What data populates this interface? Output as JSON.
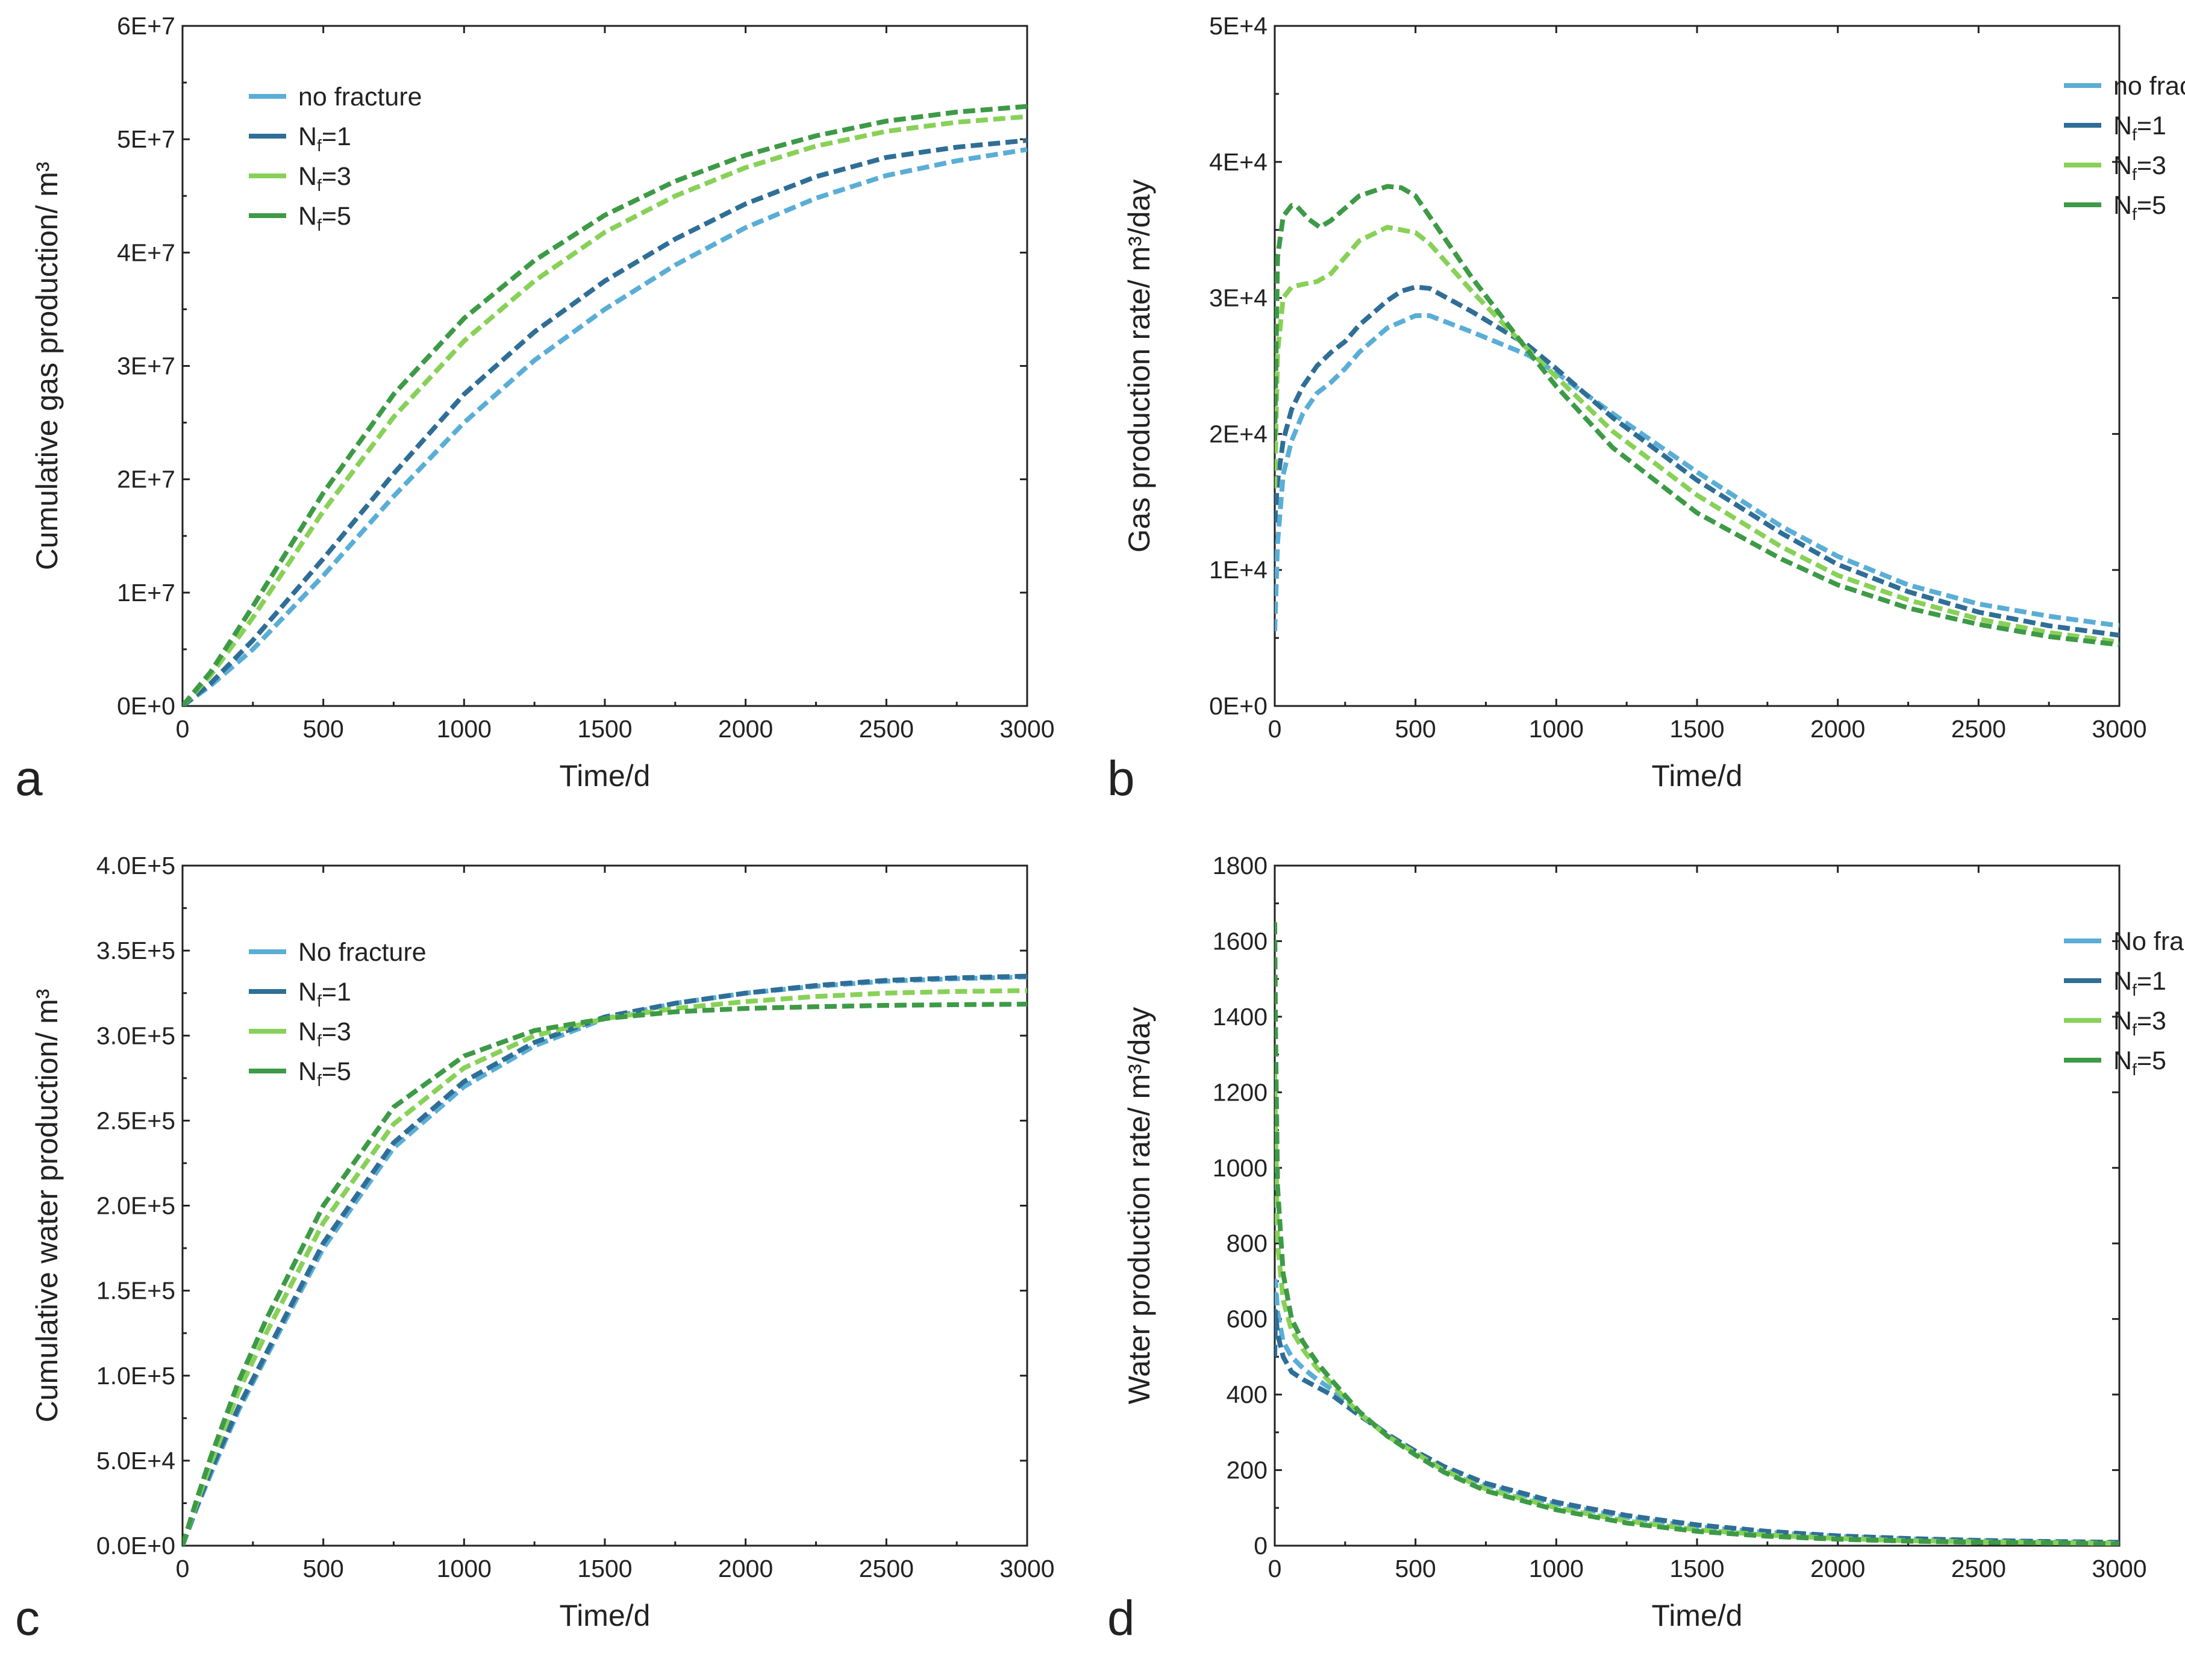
{
  "colors": {
    "no_fracture": "#5aaed6",
    "nf1": "#2f6e96",
    "nf3": "#88d158",
    "nf5": "#3d9a46"
  },
  "chart_data": [
    {
      "id": "a",
      "type": "line",
      "panel_label": "a",
      "xlabel": "Time/d",
      "ylabel": "Cumulative gas production/ m³",
      "xlim": [
        0,
        3000
      ],
      "ylim": [
        0,
        60000000
      ],
      "xticks": [
        "0",
        "500",
        "1000",
        "1500",
        "2000",
        "2500",
        "3000"
      ],
      "yticks": [
        "0E+0",
        "1E+7",
        "2E+7",
        "3E+7",
        "4E+7",
        "5E+7",
        "6E+7"
      ],
      "legend_position": "top-left",
      "series": [
        {
          "name": "no fracture",
          "sub": "",
          "tail": "",
          "color": "#5aaed6",
          "x": [
            0,
            100,
            250,
            500,
            750,
            1000,
            1250,
            1500,
            1750,
            2000,
            2250,
            2500,
            2750,
            3000
          ],
          "y": [
            0,
            1800000,
            5000000,
            11500000,
            18500000,
            25000000,
            30500000,
            35000000,
            38900000,
            42200000,
            44800000,
            46800000,
            48100000,
            49100000
          ]
        },
        {
          "name": "N",
          "sub": "f",
          "tail": "=1",
          "color": "#2f6e96",
          "x": [
            0,
            100,
            250,
            500,
            750,
            1000,
            1250,
            1500,
            1750,
            2000,
            2250,
            2500,
            2750,
            3000
          ],
          "y": [
            0,
            2000000,
            5800000,
            13000000,
            20500000,
            27500000,
            33000000,
            37500000,
            41200000,
            44300000,
            46700000,
            48400000,
            49300000,
            49900000
          ]
        },
        {
          "name": "N",
          "sub": "f",
          "tail": "=3",
          "color": "#88d158",
          "x": [
            0,
            100,
            250,
            500,
            750,
            1000,
            1250,
            1500,
            1750,
            2000,
            2250,
            2500,
            2750,
            3000
          ],
          "y": [
            0,
            2700000,
            7800000,
            17200000,
            25500000,
            32200000,
            37500000,
            41800000,
            45000000,
            47500000,
            49400000,
            50700000,
            51500000,
            52000000
          ]
        },
        {
          "name": "N",
          "sub": "f",
          "tail": "=5",
          "color": "#3d9a46",
          "x": [
            0,
            100,
            250,
            500,
            750,
            1000,
            1250,
            1500,
            1750,
            2000,
            2250,
            2500,
            2750,
            3000
          ],
          "y": [
            0,
            3000000,
            8800000,
            18800000,
            27500000,
            34200000,
            39300000,
            43300000,
            46300000,
            48600000,
            50300000,
            51600000,
            52400000,
            52900000
          ]
        }
      ]
    },
    {
      "id": "b",
      "type": "line",
      "panel_label": "b",
      "xlabel": "Time/d",
      "ylabel": "Gas production rate/ m³/day",
      "xlim": [
        0,
        3000
      ],
      "ylim": [
        0,
        50000
      ],
      "xticks": [
        "0",
        "500",
        "1000",
        "1500",
        "2000",
        "2500",
        "3000"
      ],
      "yticks": [
        "0E+0",
        "1E+4",
        "2E+4",
        "3E+4",
        "4E+4",
        "5E+4"
      ],
      "legend_position": "top-right",
      "series": [
        {
          "name": "no fracture",
          "sub": "",
          "tail": "",
          "color": "#5aaed6",
          "x": [
            0,
            10,
            30,
            60,
            100,
            150,
            200,
            250,
            300,
            400,
            500,
            550,
            700,
            900,
            1000,
            1200,
            1500,
            1800,
            2000,
            2250,
            2500,
            2750,
            3000
          ],
          "y": [
            5500,
            12000,
            17000,
            19500,
            21500,
            23000,
            23800,
            24800,
            26000,
            27800,
            28700,
            28700,
            27500,
            25800,
            24500,
            21500,
            17200,
            13200,
            11000,
            8900,
            7500,
            6600,
            5900
          ]
        },
        {
          "name": "N",
          "sub": "f",
          "tail": "=1",
          "color": "#2f6e96",
          "x": [
            0,
            10,
            30,
            60,
            100,
            150,
            200,
            250,
            300,
            400,
            450,
            500,
            550,
            700,
            900,
            1000,
            1200,
            1500,
            1800,
            2000,
            2250,
            2500,
            2750,
            3000
          ],
          "y": [
            13500,
            16500,
            19500,
            21800,
            23500,
            25000,
            26000,
            26800,
            28000,
            29800,
            30500,
            30800,
            30700,
            29000,
            26500,
            24800,
            21200,
            16600,
            12700,
            10400,
            8400,
            6900,
            5900,
            5200
          ]
        },
        {
          "name": "N",
          "sub": "f",
          "tail": "=3",
          "color": "#88d158",
          "x": [
            0,
            10,
            30,
            60,
            100,
            150,
            200,
            250,
            300,
            400,
            500,
            550,
            700,
            900,
            1000,
            1200,
            1500,
            1800,
            2000,
            2250,
            2500,
            2750,
            3000
          ],
          "y": [
            16000,
            26000,
            30000,
            30800,
            31000,
            31200,
            31800,
            33000,
            34200,
            35200,
            34800,
            34000,
            30500,
            26200,
            24200,
            20200,
            15500,
            11700,
            9600,
            7800,
            6400,
            5400,
            4700
          ]
        },
        {
          "name": "N",
          "sub": "f",
          "tail": "=5",
          "color": "#3d9a46",
          "x": [
            0,
            10,
            30,
            60,
            80,
            120,
            160,
            200,
            300,
            400,
            450,
            500,
            550,
            700,
            900,
            1000,
            1200,
            1500,
            1800,
            2000,
            2250,
            2500,
            2750,
            3000
          ],
          "y": [
            19500,
            33000,
            36000,
            36800,
            36700,
            35800,
            35200,
            35700,
            37500,
            38200,
            38100,
            37500,
            36000,
            31500,
            26100,
            23500,
            19000,
            14200,
            10800,
            8900,
            7200,
            6000,
            5100,
            4500
          ]
        }
      ]
    },
    {
      "id": "c",
      "type": "line",
      "panel_label": "c",
      "xlabel": "Time/d",
      "ylabel": "Cumulative water production/ m³",
      "xlim": [
        0,
        3000
      ],
      "ylim": [
        0,
        400000
      ],
      "xticks": [
        "0",
        "500",
        "1000",
        "1500",
        "2000",
        "2500",
        "3000"
      ],
      "yticks": [
        "0.0E+0",
        "5.0E+4",
        "1.0E+5",
        "1.5E+5",
        "2.0E+5",
        "2.5E+5",
        "3.0E+5",
        "3.5E+5",
        "4.0E+5"
      ],
      "legend_position": "top-left",
      "series": [
        {
          "name": "No fracture",
          "sub": "",
          "tail": "",
          "color": "#5aaed6",
          "x": [
            0,
            50,
            100,
            200,
            300,
            500,
            750,
            1000,
            1250,
            1500,
            1750,
            2000,
            2250,
            2500,
            2750,
            3000
          ],
          "y": [
            0,
            22000,
            42000,
            80000,
            112000,
            175000,
            234000,
            270000,
            294000,
            310000,
            319000,
            325000,
            329000,
            332000,
            333500,
            334500
          ]
        },
        {
          "name": "N",
          "sub": "f",
          "tail": "=1",
          "color": "#2f6e96",
          "x": [
            0,
            50,
            100,
            200,
            300,
            500,
            750,
            1000,
            1250,
            1500,
            1750,
            2000,
            2250,
            2500,
            2750,
            3000
          ],
          "y": [
            0,
            23000,
            44000,
            82000,
            114000,
            178000,
            237000,
            273000,
            296000,
            311000,
            319000,
            325000,
            329500,
            332500,
            334000,
            335000
          ]
        },
        {
          "name": "N",
          "sub": "f",
          "tail": "=3",
          "color": "#88d158",
          "x": [
            0,
            50,
            100,
            200,
            300,
            500,
            750,
            1000,
            1250,
            1500,
            1750,
            2000,
            2250,
            2500,
            2750,
            3000
          ],
          "y": [
            0,
            25000,
            48000,
            91000,
            126000,
            190000,
            248000,
            281000,
            300000,
            310000,
            316000,
            320000,
            323000,
            325000,
            326000,
            326500
          ]
        },
        {
          "name": "N",
          "sub": "f",
          "tail": "=5",
          "color": "#3d9a46",
          "x": [
            0,
            50,
            100,
            200,
            300,
            500,
            750,
            1000,
            1250,
            1500,
            1750,
            2000,
            2250,
            2500,
            2750,
            3000
          ],
          "y": [
            0,
            27000,
            52000,
            97000,
            134000,
            200000,
            258000,
            288000,
            303000,
            310000,
            314000,
            316000,
            317000,
            317800,
            318200,
            318500
          ]
        }
      ]
    },
    {
      "id": "d",
      "type": "line",
      "panel_label": "d",
      "xlabel": "Time/d",
      "ylabel": "Water production rate/ m³/day",
      "xlim": [
        0,
        3000
      ],
      "ylim": [
        0,
        1800
      ],
      "xticks": [
        "0",
        "500",
        "1000",
        "1500",
        "2000",
        "2500",
        "3000"
      ],
      "yticks": [
        "0",
        "200",
        "400",
        "600",
        "800",
        "1000",
        "1200",
        "1400",
        "1600",
        "1800"
      ],
      "legend_position": "top-right",
      "series": [
        {
          "name": "No fracture",
          "sub": "",
          "tail": "",
          "color": "#5aaed6",
          "x": [
            0,
            3,
            10,
            30,
            60,
            100,
            150,
            200,
            300,
            400,
            500,
            600,
            750,
            1000,
            1250,
            1500,
            1750,
            2000,
            2250,
            2500,
            2750,
            3000
          ],
          "y": [
            640,
            700,
            620,
            540,
            500,
            470,
            440,
            415,
            350,
            295,
            250,
            205,
            160,
            110,
            75,
            50,
            35,
            25,
            18,
            13,
            10,
            8
          ]
        },
        {
          "name": "N",
          "sub": "f",
          "tail": "=1",
          "color": "#2f6e96",
          "x": [
            0,
            3,
            10,
            30,
            60,
            100,
            150,
            200,
            300,
            400,
            500,
            600,
            750,
            1000,
            1250,
            1500,
            1750,
            2000,
            2250,
            2500,
            2750,
            3000
          ],
          "y": [
            500,
            620,
            560,
            500,
            460,
            440,
            420,
            400,
            345,
            295,
            250,
            210,
            165,
            115,
            80,
            55,
            38,
            26,
            19,
            14,
            11,
            9
          ]
        },
        {
          "name": "N",
          "sub": "f",
          "tail": "=3",
          "color": "#88d158",
          "x": [
            0,
            3,
            10,
            30,
            60,
            100,
            150,
            200,
            300,
            400,
            500,
            600,
            750,
            1000,
            1250,
            1500,
            1750,
            2000,
            2250,
            2500,
            2750,
            3000
          ],
          "y": [
            1250,
            1100,
            800,
            650,
            570,
            520,
            470,
            430,
            350,
            290,
            245,
            200,
            150,
            100,
            65,
            42,
            28,
            19,
            13,
            10,
            8,
            6
          ]
        },
        {
          "name": "N",
          "sub": "f",
          "tail": "=5",
          "color": "#3d9a46",
          "x": [
            0,
            3,
            10,
            30,
            60,
            100,
            150,
            200,
            300,
            400,
            500,
            600,
            750,
            1000,
            1250,
            1500,
            1750,
            2000,
            2250,
            2500,
            2750,
            3000
          ],
          "y": [
            1650,
            1350,
            950,
            720,
            600,
            540,
            485,
            440,
            355,
            290,
            240,
            195,
            145,
            95,
            60,
            38,
            25,
            17,
            12,
            9,
            7,
            5
          ]
        }
      ]
    }
  ]
}
